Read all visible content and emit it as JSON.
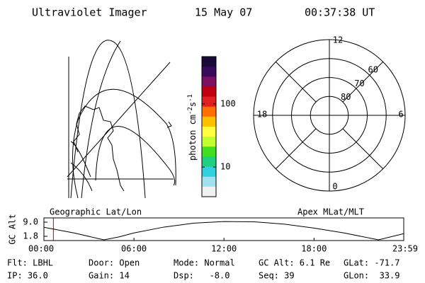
{
  "header": {
    "title": "Ultraviolet Imager",
    "date": "15 May 07",
    "time": "00:37:38 UT"
  },
  "colorbar": {
    "unit": [
      "photon cm",
      "-2",
      "s",
      "-1"
    ],
    "ylim": [
      3.4,
      560
    ],
    "log": true,
    "ticks": [
      10,
      100
    ],
    "colors": [
      "#1a0a3a",
      "#3a0a5a",
      "#7a1060",
      "#c00010",
      "#e02020",
      "#ff7000",
      "#ffc000",
      "#ffff40",
      "#c0ff30",
      "#40e020",
      "#20d080",
      "#30d0e0",
      "#a0e0f0",
      "#f0f0f0"
    ]
  },
  "polar": {
    "mlt_labels": {
      "top": 12,
      "right": 6,
      "bottom": 0,
      "left": 18
    },
    "lat_rings": [
      80,
      70,
      60
    ],
    "rlim": [
      90,
      50
    ]
  },
  "map_labels": {
    "left": "Geographic Lat/Lon",
    "right": "Apex MLat/MLT"
  },
  "alt_plot": {
    "ylabel": "GC Alt",
    "x": [
      0,
      2,
      4,
      5,
      6,
      8,
      10,
      12,
      14,
      16,
      18,
      20,
      22.3,
      24
    ],
    "values": [
      6.4,
      3.5,
      0,
      1.5,
      3.5,
      6.5,
      8.5,
      9.3,
      9.2,
      8,
      6,
      3.5,
      0,
      3.2
    ],
    "xlim": [
      0,
      23.98
    ],
    "ylim": [
      -0.36,
      11.16
    ],
    "xticks": [
      {
        "value": 0,
        "label": "00:00"
      },
      {
        "value": 6,
        "label": "06:00"
      },
      {
        "value": 12,
        "label": "12:00"
      },
      {
        "value": 18,
        "label": "18:00"
      },
      {
        "value": 23.98,
        "label": "23:59"
      }
    ],
    "yticks": [
      {
        "value": 9,
        "label": "9.0"
      },
      1.8
    ],
    "marker": 0.63,
    "marker_color": "#d00000"
  },
  "status": {
    "rows": [
      [
        "Flt: LBHL",
        "Door: Open",
        "Mode: Normal",
        "GC Alt: 6.1 Re",
        "GLat: -71.7"
      ],
      [
        "IP: 36.0",
        "Gain: 14",
        "Dsp:   -8.0",
        "Seq: 39",
        "GLon:  33.9"
      ]
    ]
  }
}
